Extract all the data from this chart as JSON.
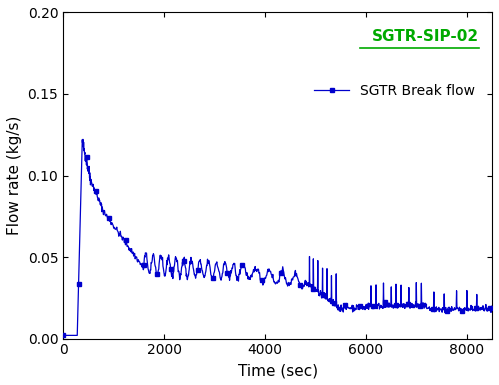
{
  "title": "SGTR-SIP-02",
  "legend_label": "SGTR Break flow",
  "xlabel": "Time (sec)",
  "ylabel": "Flow rate (kg/s)",
  "line_color": "#0000CC",
  "marker": "s",
  "marker_size": 3,
  "xlim": [
    0,
    8500
  ],
  "ylim": [
    0.0,
    0.2
  ],
  "xticks": [
    0,
    2000,
    4000,
    6000,
    8000
  ],
  "yticks": [
    0.0,
    0.05,
    0.1,
    0.15,
    0.2
  ],
  "title_color": "#00AA00",
  "background_color": "white"
}
